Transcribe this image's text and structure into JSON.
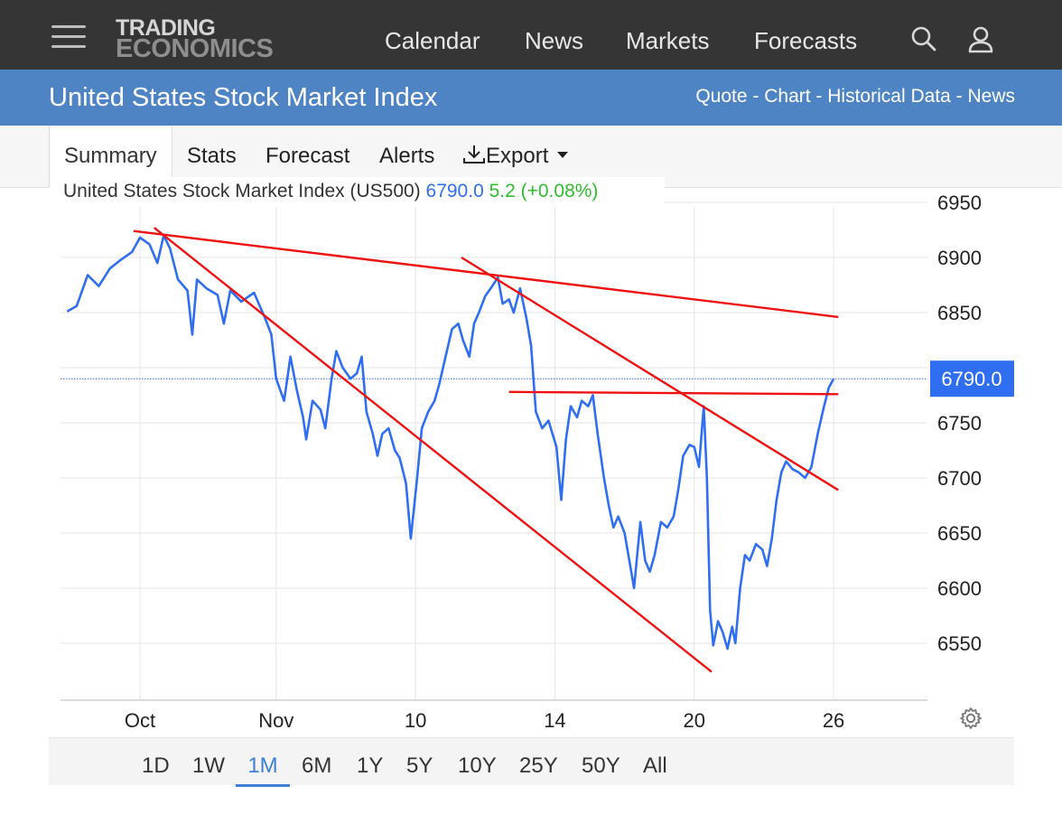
{
  "header": {
    "logo_line1": "TRADING",
    "logo_line2": "ECONOMICS",
    "nav": [
      "Calendar",
      "News",
      "Markets",
      "Forecasts"
    ]
  },
  "subheader": {
    "title": "United States Stock Market Index",
    "links": [
      "Quote",
      "Chart",
      "Historical Data",
      "News"
    ],
    "separator": " - "
  },
  "tabs": {
    "summary": "Summary",
    "stats": "Stats",
    "forecast": "Forecast",
    "alerts": "Alerts",
    "export": "Export"
  },
  "ranges": [
    "1D",
    "1W",
    "1M",
    "6M",
    "1Y",
    "5Y",
    "10Y",
    "25Y",
    "50Y",
    "All"
  ],
  "active_range": "1M",
  "colors": {
    "series": "#2f6ef0",
    "trendline": "#ee1111",
    "price_tag": "#2f6ef0",
    "change": "#2ebd2e",
    "topbar": "#353535",
    "subbar": "#4e84c4"
  },
  "chart_data": {
    "type": "line",
    "title": "United States Stock Market Index (US500)",
    "last_value": "6790.0",
    "change": "5.2",
    "change_pct": "(+0.08%)",
    "price_tag": "6790.0",
    "ylim": [
      6500,
      6960
    ],
    "y_ticks": [
      6550,
      6600,
      6650,
      6700,
      6750,
      6800,
      6850,
      6900,
      6950
    ],
    "xlim": [
      0,
      49
    ],
    "x_ticks": [
      {
        "label": "Oct",
        "x": 4.6
      },
      {
        "label": "Nov",
        "x": 13.2
      },
      {
        "label": "10",
        "x": 22.0
      },
      {
        "label": "14",
        "x": 30.8
      },
      {
        "label": "20",
        "x": 39.6
      },
      {
        "label": "26",
        "x": 48.4
      }
    ],
    "grid": true,
    "current_level_line": 6790.0,
    "series": [
      {
        "values": [
          [
            0.0,
            6851
          ],
          [
            0.6,
            6856
          ],
          [
            1.3,
            6884
          ],
          [
            2.0,
            6874
          ],
          [
            2.7,
            6890
          ],
          [
            3.4,
            6898
          ],
          [
            4.1,
            6905
          ],
          [
            4.6,
            6918
          ],
          [
            5.2,
            6912
          ],
          [
            5.7,
            6895
          ],
          [
            6.1,
            6920
          ],
          [
            6.5,
            6908
          ],
          [
            7.0,
            6880
          ],
          [
            7.6,
            6870
          ],
          [
            7.9,
            6830
          ],
          [
            8.2,
            6880
          ],
          [
            8.8,
            6872
          ],
          [
            9.5,
            6866
          ],
          [
            9.9,
            6840
          ],
          [
            10.3,
            6870
          ],
          [
            11.0,
            6860
          ],
          [
            11.8,
            6868
          ],
          [
            12.5,
            6845
          ],
          [
            12.9,
            6830
          ],
          [
            13.2,
            6790
          ],
          [
            13.7,
            6770
          ],
          [
            14.1,
            6810
          ],
          [
            14.5,
            6780
          ],
          [
            14.9,
            6755
          ],
          [
            15.1,
            6735
          ],
          [
            15.5,
            6770
          ],
          [
            16.0,
            6762
          ],
          [
            16.3,
            6745
          ],
          [
            16.7,
            6790
          ],
          [
            17.0,
            6815
          ],
          [
            17.4,
            6800
          ],
          [
            17.9,
            6790
          ],
          [
            18.3,
            6795
          ],
          [
            18.6,
            6810
          ],
          [
            18.9,
            6760
          ],
          [
            19.3,
            6740
          ],
          [
            19.6,
            6720
          ],
          [
            19.9,
            6740
          ],
          [
            20.3,
            6745
          ],
          [
            20.7,
            6725
          ],
          [
            21.0,
            6718
          ],
          [
            21.4,
            6695
          ],
          [
            21.7,
            6645
          ],
          [
            22.1,
            6700
          ],
          [
            22.4,
            6745
          ],
          [
            22.8,
            6760
          ],
          [
            23.2,
            6770
          ],
          [
            23.5,
            6785
          ],
          [
            23.9,
            6810
          ],
          [
            24.3,
            6835
          ],
          [
            24.7,
            6840
          ],
          [
            25.0,
            6825
          ],
          [
            25.4,
            6810
          ],
          [
            25.7,
            6840
          ],
          [
            26.0,
            6850
          ],
          [
            26.4,
            6865
          ],
          [
            26.8,
            6873
          ],
          [
            27.2,
            6882
          ],
          [
            27.5,
            6858
          ],
          [
            27.9,
            6862
          ],
          [
            28.2,
            6850
          ],
          [
            28.6,
            6872
          ],
          [
            29.0,
            6845
          ],
          [
            29.3,
            6820
          ],
          [
            29.6,
            6760
          ],
          [
            30.0,
            6745
          ],
          [
            30.4,
            6752
          ],
          [
            30.9,
            6728
          ],
          [
            31.2,
            6680
          ],
          [
            31.5,
            6735
          ],
          [
            31.8,
            6765
          ],
          [
            32.2,
            6755
          ],
          [
            32.5,
            6770
          ],
          [
            32.9,
            6765
          ],
          [
            33.2,
            6775
          ],
          [
            33.5,
            6740
          ],
          [
            33.9,
            6700
          ],
          [
            34.2,
            6675
          ],
          [
            34.5,
            6655
          ],
          [
            34.8,
            6665
          ],
          [
            35.2,
            6650
          ],
          [
            35.5,
            6625
          ],
          [
            35.8,
            6600
          ],
          [
            36.2,
            6660
          ],
          [
            36.5,
            6625
          ],
          [
            36.8,
            6615
          ],
          [
            37.1,
            6630
          ],
          [
            37.5,
            6660
          ],
          [
            37.9,
            6655
          ],
          [
            38.3,
            6665
          ],
          [
            38.6,
            6690
          ],
          [
            38.9,
            6720
          ],
          [
            39.3,
            6730
          ],
          [
            39.6,
            6728
          ],
          [
            39.9,
            6710
          ],
          [
            40.2,
            6765
          ],
          [
            40.4,
            6700
          ],
          [
            40.6,
            6580
          ],
          [
            40.8,
            6548
          ],
          [
            41.1,
            6570
          ],
          [
            41.4,
            6560
          ],
          [
            41.7,
            6545
          ],
          [
            42.0,
            6565
          ],
          [
            42.2,
            6550
          ],
          [
            42.5,
            6600
          ],
          [
            42.8,
            6630
          ],
          [
            43.1,
            6625
          ],
          [
            43.5,
            6640
          ],
          [
            43.9,
            6635
          ],
          [
            44.2,
            6620
          ],
          [
            44.5,
            6645
          ],
          [
            44.8,
            6680
          ],
          [
            45.1,
            6705
          ],
          [
            45.4,
            6715
          ],
          [
            45.8,
            6708
          ],
          [
            46.2,
            6705
          ],
          [
            46.6,
            6700
          ],
          [
            47.0,
            6710
          ],
          [
            47.4,
            6740
          ],
          [
            47.8,
            6765
          ],
          [
            48.1,
            6782
          ],
          [
            48.4,
            6790
          ]
        ]
      }
    ],
    "trendlines": [
      {
        "x1": 4.2,
        "y1": 6924,
        "x2": 48.7,
        "y2": 6846
      },
      {
        "x1": 5.5,
        "y1": 6927,
        "x2": 40.7,
        "y2": 6524
      },
      {
        "x1": 24.9,
        "y1": 6900,
        "x2": 48.7,
        "y2": 6689
      },
      {
        "x1": 27.9,
        "y1": 6778,
        "x2": 48.7,
        "y2": 6776
      }
    ]
  }
}
